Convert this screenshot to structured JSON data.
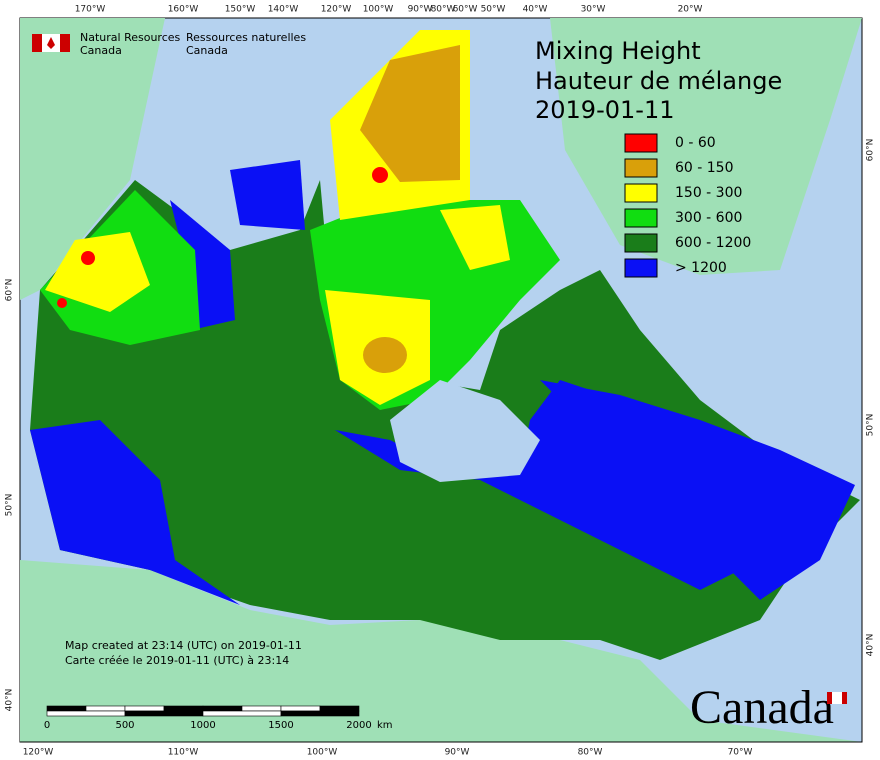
{
  "header": {
    "agency_en": "Natural Resources",
    "agency_en_2": "Canada",
    "agency_fr": "Ressources naturelles",
    "agency_fr_2": "Canada"
  },
  "title": {
    "line1": "Mixing Height",
    "line2": "Hauteur de mélange",
    "date": "2019-01-11"
  },
  "legend": [
    {
      "label": "0 - 60",
      "color": "#ff0000"
    },
    {
      "label": "60 - 150",
      "color": "#d9a00a"
    },
    {
      "label": "150 - 300",
      "color": "#ffff00"
    },
    {
      "label": "300 - 600",
      "color": "#11dd11"
    },
    {
      "label": "600 - 1200",
      "color": "#1a7d1a"
    },
    {
      "label": "> 1200",
      "color": "#0a10f5"
    }
  ],
  "top_longitudes": [
    "170°W",
    "160°W",
    "150°W",
    "140°W",
    "120°W",
    "100°W",
    "90°W",
    "80°W",
    "60°W",
    "50°W",
    "40°W",
    "30°W",
    "20°W"
  ],
  "bottom_longitudes": [
    "120°W",
    "110°W",
    "100°W",
    "90°W",
    "80°W",
    "70°W"
  ],
  "left_latitudes": [
    "60°N",
    "50°N",
    "40°N"
  ],
  "right_latitudes": [
    "60°N",
    "50°N",
    "40°N"
  ],
  "notes": {
    "created_en": "Map created at 23:14 (UTC) on 2019-01-11",
    "created_fr": "Carte créée le 2019-01-11 (UTC) à 23:14"
  },
  "scale_bar": {
    "labels": [
      0,
      500,
      1000,
      1500,
      2000
    ],
    "unit": "km"
  },
  "wordmark": "Canada"
}
